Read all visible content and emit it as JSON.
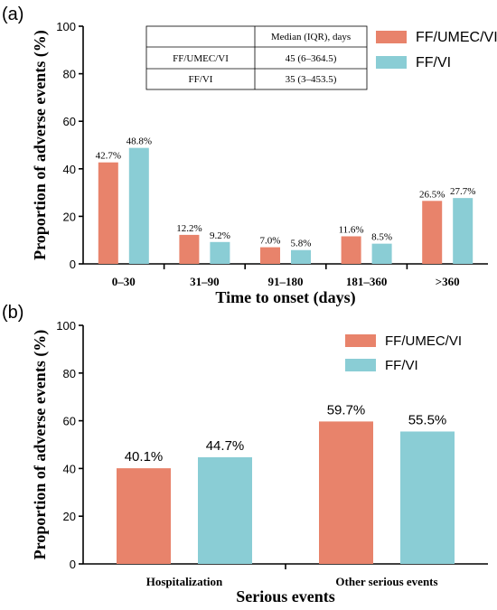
{
  "colors": {
    "series1": "#E8836B",
    "series2": "#8ACDD5"
  },
  "chart_data": [
    {
      "panel_label": "(a)",
      "type": "bar",
      "categories": [
        "0-30",
        "31-90",
        "91-180",
        "181-360",
        ">360"
      ],
      "series": [
        {
          "name": "FF/UMEC/VI",
          "values": [
            42.7,
            12.2,
            7.0,
            11.6,
            26.5
          ],
          "labels": [
            "42.7%",
            "12.2%",
            "7.0%",
            "11.6%",
            "26.5%"
          ]
        },
        {
          "name": "FF/VI",
          "values": [
            48.8,
            9.2,
            5.8,
            8.5,
            27.7
          ],
          "labels": [
            "48.8%",
            "9.2%",
            "5.8%",
            "8.5%",
            "27.7%"
          ]
        }
      ],
      "xlabel": "Time to onset (days)",
      "ylabel": "Proportion of adverse events (%)",
      "ylim": [
        0,
        100
      ],
      "yticks": [
        0,
        20,
        40,
        60,
        80,
        100
      ],
      "legend_position": "top-right",
      "table": {
        "header": [
          "",
          "Median (IQR), days"
        ],
        "rows": [
          [
            "FF/UMEC/VI",
            "45 (6–364.5)"
          ],
          [
            "FF/VI",
            "35 (3–453.5)"
          ]
        ]
      }
    },
    {
      "panel_label": "(b)",
      "type": "bar",
      "categories": [
        "Hospitalization",
        "Other serious events"
      ],
      "series": [
        {
          "name": "FF/UMEC/VI",
          "values": [
            40.1,
            59.7
          ],
          "labels": [
            "40.1%",
            "59.7%"
          ]
        },
        {
          "name": "FF/VI",
          "values": [
            44.7,
            55.5
          ],
          "labels": [
            "44.7%",
            "55.5%"
          ]
        }
      ],
      "xlabel": "Serious events",
      "ylabel": "Proportion of adverse events (%)",
      "ylim": [
        0,
        100
      ],
      "yticks": [
        0,
        20,
        40,
        60,
        80,
        100
      ],
      "legend_position": "top-right"
    }
  ]
}
